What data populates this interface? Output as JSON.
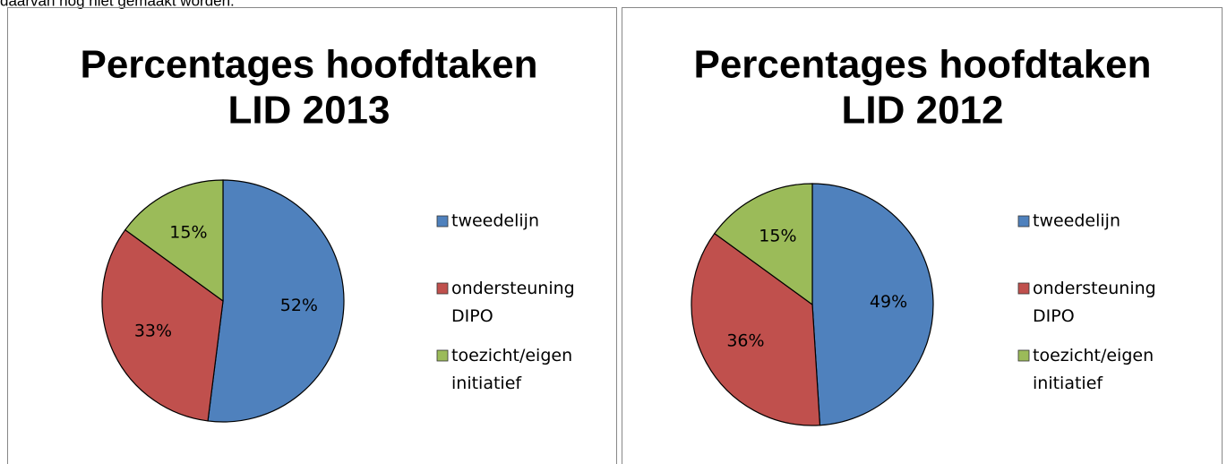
{
  "text": "daarvan nog niet gemaakt worden.",
  "chart_data": [
    {
      "type": "pie",
      "title": [
        "Percentages hoofdtaken",
        "LID 2013"
      ],
      "categories": [
        "tweedelijn",
        "ondersteuning DIPO",
        "toezicht/eigen initiatief"
      ],
      "values": [
        52,
        33,
        15
      ],
      "value_labels": [
        "52%",
        "33%",
        "15%"
      ],
      "colors": [
        "#4f81bd",
        "#c0504d",
        "#9bbb59"
      ],
      "legend": "right"
    },
    {
      "type": "pie",
      "title": [
        "Percentages hoofdtaken",
        "LID 2012"
      ],
      "categories": [
        "tweedelijn",
        "ondersteuning DIPO",
        "toezicht/eigen initiatief"
      ],
      "values": [
        49,
        36,
        15
      ],
      "value_labels": [
        "49%",
        "36%",
        "15%"
      ],
      "colors": [
        "#4f81bd",
        "#c0504d",
        "#9bbb59"
      ],
      "legend": "right"
    }
  ]
}
